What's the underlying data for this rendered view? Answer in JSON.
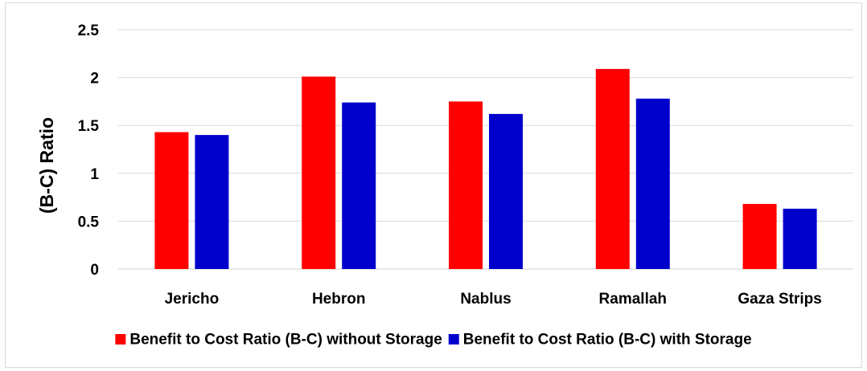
{
  "chart_data": {
    "type": "bar",
    "categories": [
      "Jericho",
      "Hebron",
      "Nablus",
      "Ramallah",
      "Gaza Strips"
    ],
    "series": [
      {
        "name": "Benefit to Cost Ratio (B-C) without Storage",
        "color": "#ff0000",
        "values": [
          1.43,
          2.01,
          1.75,
          2.09,
          0.68
        ]
      },
      {
        "name": "Benefit to Cost Ratio (B-C) with Storage",
        "color": "#0000cc",
        "values": [
          1.4,
          1.74,
          1.62,
          1.78,
          0.63
        ]
      }
    ],
    "ylabel": "(B-C) Ratio",
    "ylim": [
      0,
      2.5
    ],
    "yticks": [
      "0",
      "0.5",
      "1",
      "1.5",
      "2",
      "2.5"
    ],
    "grid": true,
    "legend_position": "bottom"
  }
}
